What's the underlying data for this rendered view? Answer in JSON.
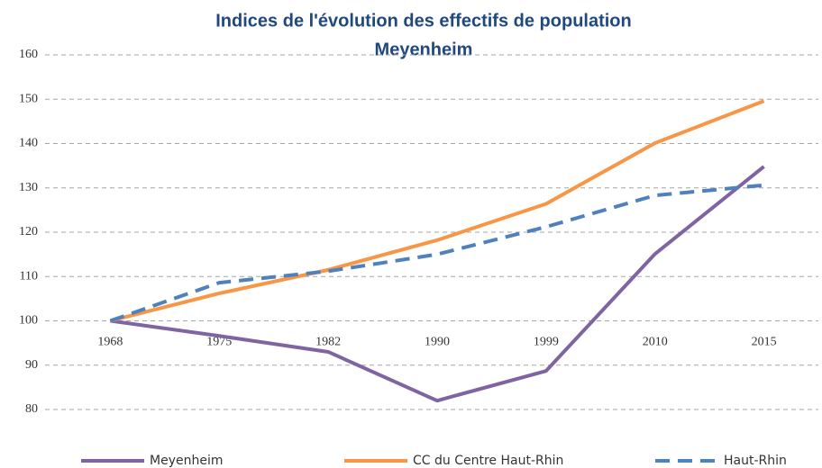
{
  "chart_data": {
    "type": "line",
    "title": "Indices de l'évolution des effectifs de population",
    "subtitle": "Meyenheim",
    "categories": [
      "1968",
      "1975",
      "1982",
      "1990",
      "1999",
      "2010",
      "2015"
    ],
    "series": [
      {
        "name": "Meyenheim",
        "color": "#8064a2",
        "dashed": false,
        "values": [
          100,
          96.6,
          93,
          82,
          88.7,
          115.1,
          134.8
        ]
      },
      {
        "name": "CC du Centre Haut-Rhin",
        "color": "#f79646",
        "dashed": false,
        "values": [
          100,
          106.2,
          111.5,
          118.2,
          126.4,
          140.1,
          149.6
        ]
      },
      {
        "name": "Haut-Rhin",
        "color": "#4f81bd",
        "dashed": true,
        "values": [
          100,
          108.6,
          111.2,
          115,
          121.2,
          128.3,
          130.6
        ]
      }
    ],
    "ylim": [
      80,
      160
    ],
    "yticks": [
      80,
      90,
      100,
      110,
      120,
      130,
      140,
      150,
      160
    ],
    "x_axis_crosses": 100,
    "grid": true,
    "legend": "bottom"
  }
}
